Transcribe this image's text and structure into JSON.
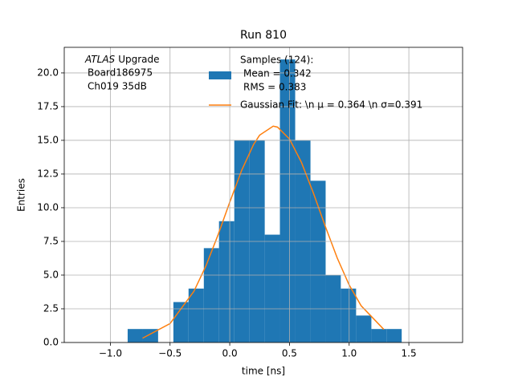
{
  "chart_data": {
    "type": "histogram",
    "title": "Run 810",
    "xlabel": "time [ns]",
    "ylabel": "Entries",
    "annotation_emphasis": "ATLAS",
    "annotation": [
      "Upgrade",
      "Board186975",
      "Ch019 35dB"
    ],
    "bins": [
      -0.855,
      -0.727,
      -0.6,
      -0.472,
      -0.345,
      -0.217,
      -0.09,
      0.038,
      0.166,
      0.293,
      0.42,
      0.548,
      0.676,
      0.803,
      0.93,
      1.058,
      1.186,
      1.313,
      1.44
    ],
    "series": [
      {
        "name": [
          "Samples (124):",
          "Mean = 0.342",
          "RMS = 0.383"
        ],
        "color": "#1f77b4",
        "values": [
          1,
          1,
          0,
          3,
          4,
          7,
          9,
          15,
          15,
          8,
          21,
          15,
          12,
          5,
          4,
          2,
          1,
          1
        ]
      },
      {
        "type": "line",
        "name": "Gaussian Fit: \\n μ = 0.364 \\n σ=0.391",
        "color": "#ff7f0e",
        "x": [
          -0.73,
          -0.5,
          -0.3,
          -0.2,
          -0.1,
          0.0,
          0.1,
          0.2,
          0.25,
          0.364,
          0.4,
          0.5,
          0.6,
          0.7,
          0.8,
          0.9,
          1.0,
          1.1,
          1.29
        ],
        "values": [
          0.32,
          1.4,
          3.8,
          5.67,
          7.94,
          10.41,
          12.78,
          14.7,
          15.38,
          16.05,
          15.98,
          15.1,
          13.37,
          11.1,
          8.62,
          6.27,
          4.27,
          2.73,
          0.97
        ]
      }
    ],
    "xlim": [
      -1.386,
      1.95
    ],
    "ylim": [
      0,
      21.9
    ],
    "xticks": [
      {
        "value": -1.0,
        "label": "−1.0"
      },
      {
        "value": -0.5,
        "label": "−0.5"
      },
      {
        "value": 0.0,
        "label": "0.0"
      },
      0.5,
      {
        "value": 1.0,
        "label": "1.0"
      },
      1.5
    ],
    "yticks": [
      {
        "value": 0,
        "label": "0.0"
      },
      2.5,
      {
        "value": 5,
        "label": "5.0"
      },
      7.5,
      {
        "value": 10,
        "label": "10.0"
      },
      12.5,
      {
        "value": 15,
        "label": "15.0"
      },
      17.5,
      {
        "value": 20,
        "label": "20.0"
      }
    ],
    "grid": true
  }
}
